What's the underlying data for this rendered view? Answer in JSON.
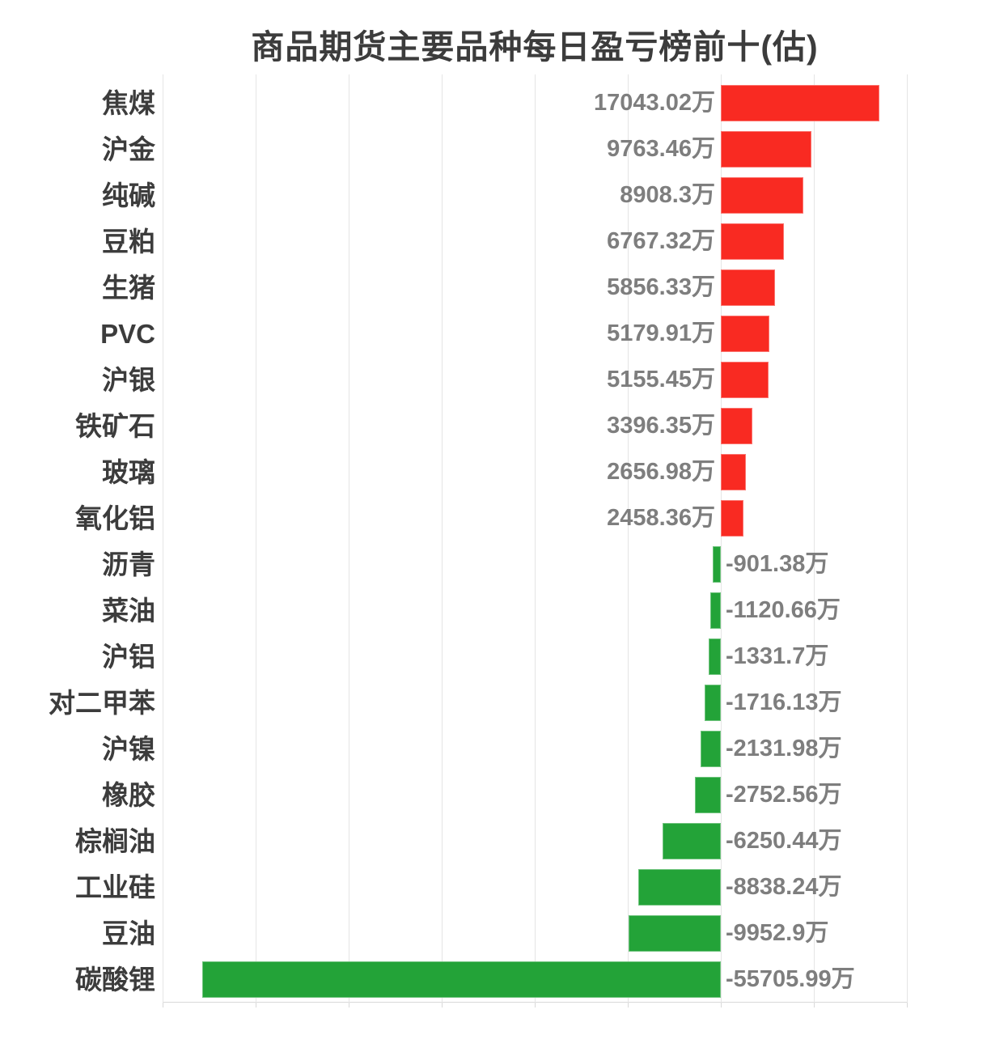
{
  "title": "商品期货主要品种每日盈亏榜前十(估)",
  "chart_data": {
    "type": "bar",
    "orientation": "horizontal",
    "unit": "万",
    "title": "商品期货主要品种每日盈亏榜前十(估)",
    "categories": [
      "焦煤",
      "沪金",
      "纯碱",
      "豆粕",
      "生猪",
      "PVC",
      "沪银",
      "铁矿石",
      "玻璃",
      "氧化铝",
      "沥青",
      "菜油",
      "沪铝",
      "对二甲苯",
      "沪镍",
      "橡胶",
      "棕榈油",
      "工业硅",
      "豆油",
      "碳酸锂"
    ],
    "values": [
      17043.02,
      9763.46,
      8908.3,
      6767.32,
      5856.33,
      5179.91,
      5155.45,
      3396.35,
      2656.98,
      2458.36,
      -901.38,
      -1120.66,
      -1331.7,
      -1716.13,
      -2131.98,
      -2752.56,
      -6250.44,
      -8838.24,
      -9952.9,
      -55705.99
    ],
    "value_labels": [
      "17043.02万",
      "9763.46万",
      "8908.3万",
      "6767.32万",
      "5856.33万",
      "5179.91万",
      "5155.45万",
      "3396.35万",
      "2656.98万",
      "2458.36万",
      "-901.38万",
      "-1120.66万",
      "-1331.7万",
      "-1716.13万",
      "-2131.98万",
      "-2752.56万",
      "-6250.44万",
      "-8838.24万",
      "-9952.9万",
      "-55705.99万"
    ],
    "xlim": [
      -60000,
      20000
    ],
    "grid_step": 10000,
    "grid": true,
    "legend": "none",
    "x_tick_labels": "none",
    "positive_color": "#f92a22",
    "negative_color": "#23a338",
    "category_label_color": "#3c3c3c",
    "value_label_color": "#7e7e7e",
    "gridline_color": "#e5e5e5",
    "background_color": "#ffffff"
  }
}
